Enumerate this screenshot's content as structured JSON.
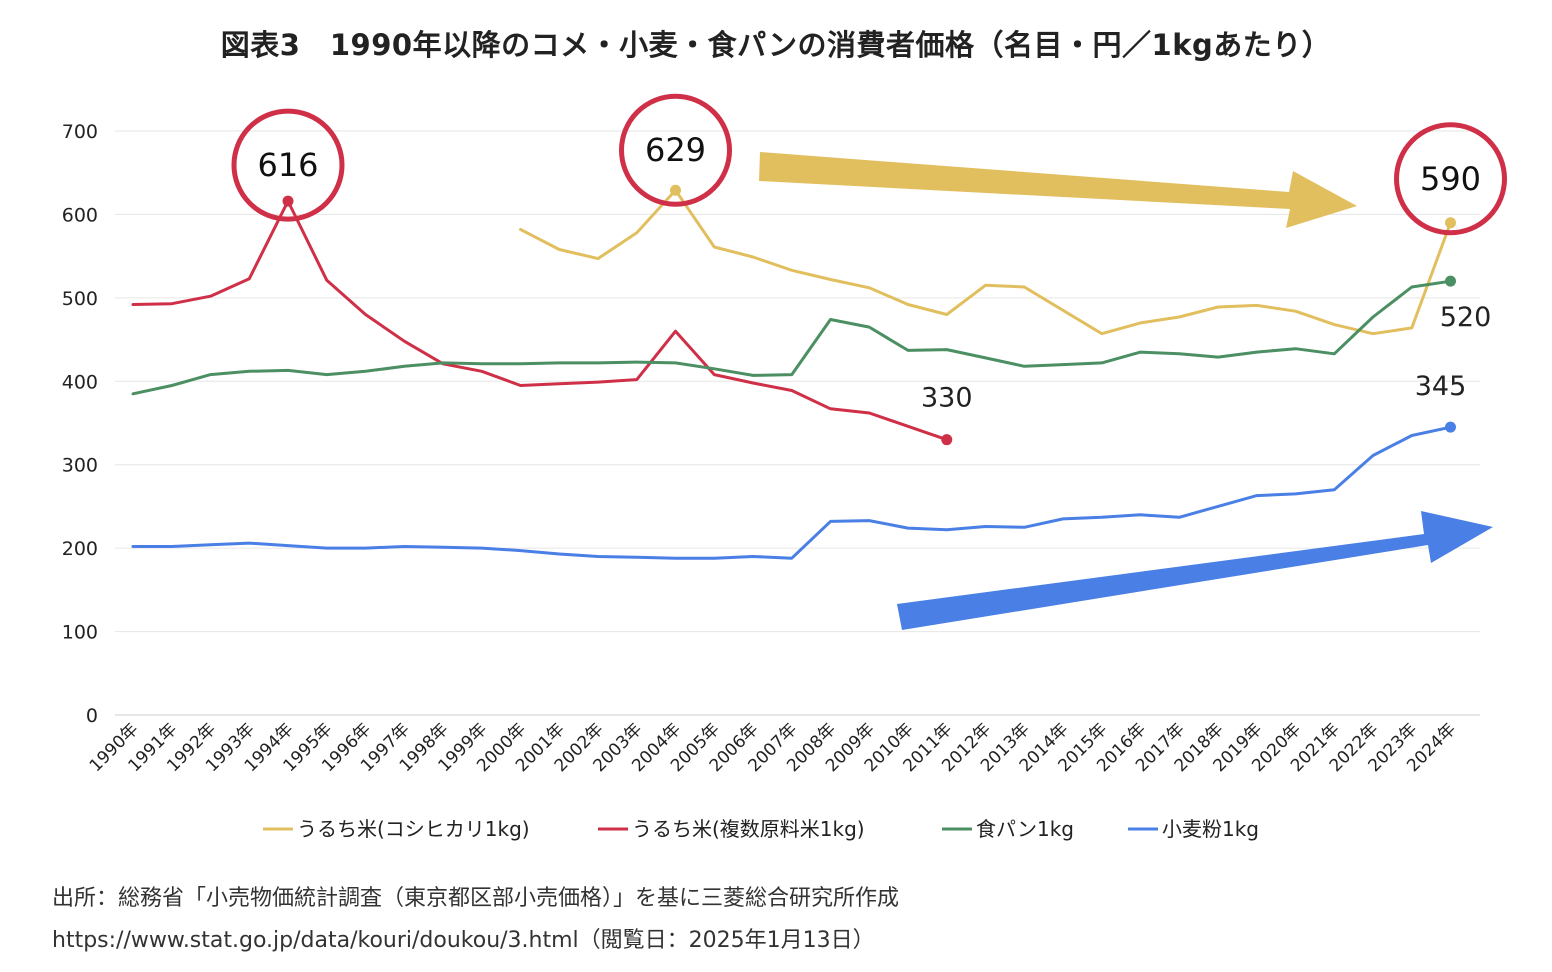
{
  "title": "図表3　1990年以降のコメ・小麦・食パンの消費者価格（名目・円／1kgあたり）",
  "source_line1": "出所：総務省「小売物価統計調査（東京都区部小売価格）」を基に三菱総合研究所作成",
  "source_line2": "https://www.stat.go.jp/data/kouri/doukou/3.html（閲覧日：2025年1月13日）",
  "chart_data": {
    "type": "line",
    "title": "図表3　1990年以降のコメ・小麦・食パンの消費者価格（名目・円／1kgあたり）",
    "xlabel": "",
    "ylabel": "",
    "ylim": [
      0,
      700
    ],
    "yticks": [
      0,
      100,
      200,
      300,
      400,
      500,
      600,
      700
    ],
    "grid": true,
    "legend_position": "bottom",
    "categories": [
      "1990年",
      "1991年",
      "1992年",
      "1993年",
      "1994年",
      "1995年",
      "1996年",
      "1997年",
      "1998年",
      "1999年",
      "2000年",
      "2001年",
      "2002年",
      "2003年",
      "2004年",
      "2005年",
      "2006年",
      "2007年",
      "2008年",
      "2009年",
      "2010年",
      "2011年",
      "2012年",
      "2013年",
      "2014年",
      "2015年",
      "2016年",
      "2017年",
      "2018年",
      "2019年",
      "2020年",
      "2021年",
      "2022年",
      "2023年",
      "2024年"
    ],
    "series": [
      {
        "name": "うるち米(コシヒカリ1kg)",
        "color": "#e2bf5e",
        "values": [
          null,
          null,
          null,
          null,
          null,
          null,
          null,
          null,
          null,
          null,
          582,
          558,
          547,
          578,
          629,
          561,
          549,
          533,
          522,
          512,
          492,
          480,
          515,
          513,
          null,
          457,
          470,
          477,
          489,
          491,
          484,
          468,
          457,
          464,
          590
        ]
      },
      {
        "name": "うるち米(複数原料米1kg)",
        "color": "#cf2f47",
        "values": [
          492,
          493,
          502,
          523,
          616,
          521,
          480,
          448,
          421,
          412,
          395,
          397,
          399,
          402,
          460,
          408,
          398,
          389,
          367,
          362,
          346,
          330,
          null,
          null,
          null,
          null,
          null,
          null,
          null,
          null,
          null,
          null,
          null,
          null,
          null
        ]
      },
      {
        "name": "食パン1kg",
        "color": "#4b8f63",
        "values": [
          385,
          395,
          408,
          412,
          413,
          408,
          412,
          418,
          422,
          421,
          421,
          422,
          422,
          423,
          422,
          415,
          407,
          408,
          474,
          465,
          437,
          438,
          428,
          418,
          420,
          422,
          435,
          433,
          429,
          435,
          439,
          433,
          477,
          513,
          520
        ]
      },
      {
        "name": "小麦粉1kg",
        "color": "#4a7fe5",
        "values": [
          202,
          202,
          204,
          206,
          203,
          200,
          200,
          202,
          201,
          200,
          197,
          193,
          190,
          189,
          188,
          188,
          190,
          188,
          232,
          233,
          224,
          222,
          226,
          225,
          235,
          237,
          240,
          237,
          250,
          263,
          265,
          270,
          311,
          335,
          345
        ]
      }
    ],
    "annotations": [
      {
        "text": "616",
        "series": "うるち米(複数原料米1kg)",
        "x": "1994年",
        "circled": true
      },
      {
        "text": "629",
        "series": "うるち米(コシヒカリ1kg)",
        "x": "2004年",
        "circled": true
      },
      {
        "text": "590",
        "series": "うるち米(コシヒカリ1kg)",
        "x": "2024年",
        "circled": true
      },
      {
        "text": "520",
        "series": "食パン1kg",
        "x": "2024年",
        "circled": false
      },
      {
        "text": "330",
        "series": "うるち米(複数原料米1kg)",
        "x": "2011年",
        "circled": false
      },
      {
        "text": "345",
        "series": "小麦粉1kg",
        "x": "2024年",
        "circled": false
      }
    ],
    "arrows": [
      {
        "color": "#e2bf5e",
        "direction": "right"
      },
      {
        "color": "#4a7fe5",
        "direction": "up-right"
      }
    ]
  }
}
